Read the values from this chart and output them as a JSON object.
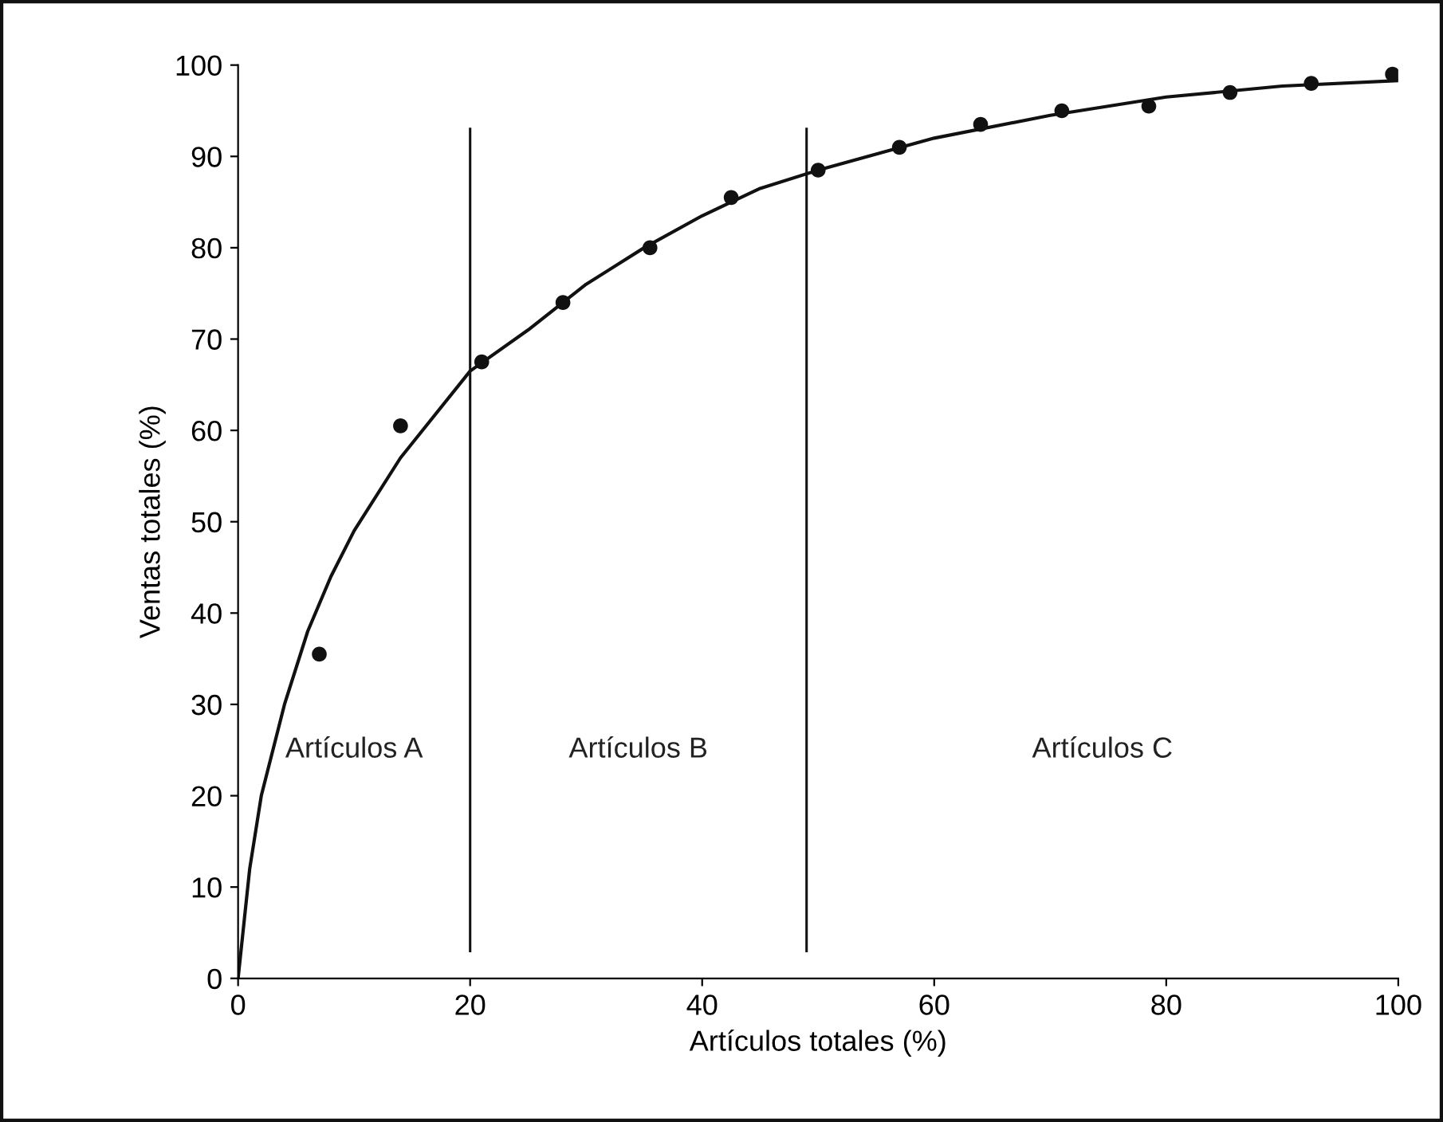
{
  "chart_data": {
    "type": "scatter",
    "xlabel": "Artículos totales (%)",
    "ylabel": "Ventas totales (%)",
    "xlim": [
      0,
      100
    ],
    "ylim": [
      0,
      100
    ],
    "xticks": [
      0,
      20,
      40,
      60,
      80,
      100
    ],
    "yticks": [
      0,
      10,
      20,
      30,
      40,
      50,
      60,
      70,
      80,
      90,
      100
    ],
    "grid": false,
    "legend": false,
    "marker": "circle",
    "series": [
      {
        "color": "#111111",
        "x": [
          7,
          14,
          21,
          28,
          35.5,
          42.5,
          50,
          57,
          64,
          71,
          78.5,
          85.5,
          92.5,
          99.5
        ],
        "values": [
          35.5,
          60.5,
          67.5,
          74,
          80,
          85.5,
          88.5,
          91,
          93.5,
          95,
          95.5,
          97,
          98,
          99
        ]
      },
      {
        "type": "line",
        "color": "#111111",
        "marker": "none",
        "line_style": "solid",
        "x": [
          0,
          1,
          2,
          4,
          6,
          8,
          10,
          14,
          20,
          25,
          30,
          35,
          40,
          45,
          50,
          60,
          70,
          80,
          90,
          100
        ],
        "values": [
          0,
          12,
          20,
          30,
          38,
          44,
          49,
          57,
          66.5,
          71,
          76,
          80,
          83.5,
          86.5,
          88.5,
          92,
          94.5,
          96.5,
          97.7,
          98.3
        ]
      }
    ],
    "ref_lines": [
      {
        "axis": "x",
        "value": 20,
        "color": "#111111"
      },
      {
        "axis": "x",
        "value": 49,
        "color": "#111111"
      }
    ],
    "annotations": [
      "Artículos A",
      "Artículos B",
      "Artículos C"
    ]
  }
}
